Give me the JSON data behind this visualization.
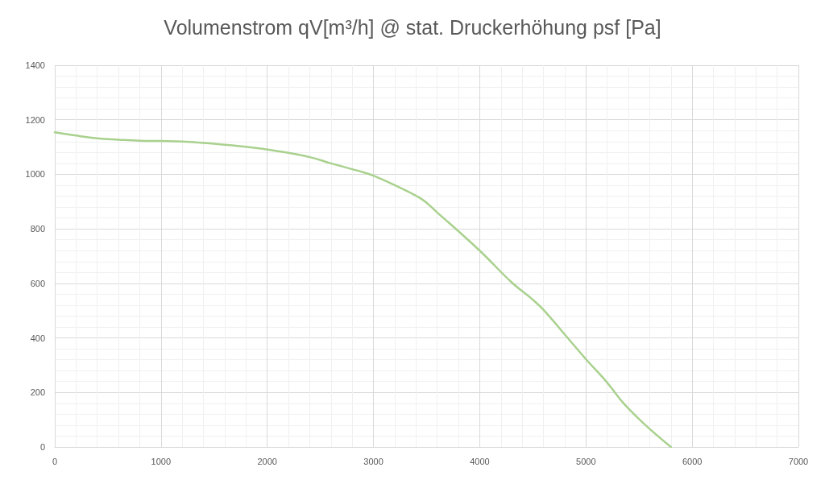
{
  "chart_data": {
    "type": "line",
    "title": "Volumenstrom qV[m³/h] @ stat. Druckerhöhung psf [Pa]",
    "x": [
      0,
      200,
      400,
      600,
      800,
      1000,
      1200,
      1500,
      1800,
      2100,
      2400,
      2600,
      2900,
      3000,
      3200,
      3450,
      3600,
      4000,
      4300,
      4500,
      4600,
      4850,
      5000,
      5200,
      5350,
      5550,
      5800
    ],
    "values": [
      1154,
      1142,
      1132,
      1127,
      1123,
      1122,
      1120,
      1112,
      1101,
      1085,
      1063,
      1040,
      1008,
      995,
      960,
      910,
      860,
      720,
      604,
      540,
      503,
      390,
      322,
      236,
      162,
      84,
      0
    ],
    "color": "#a9d18e",
    "xlim": [
      0,
      7000
    ],
    "xticks": [
      0,
      1000,
      2000,
      3000,
      4000,
      5000,
      6000,
      7000
    ],
    "ylim": [
      0,
      1400
    ],
    "yticks": [
      0,
      200,
      400,
      600,
      800,
      1000,
      1200,
      1400
    ],
    "grid": true
  }
}
